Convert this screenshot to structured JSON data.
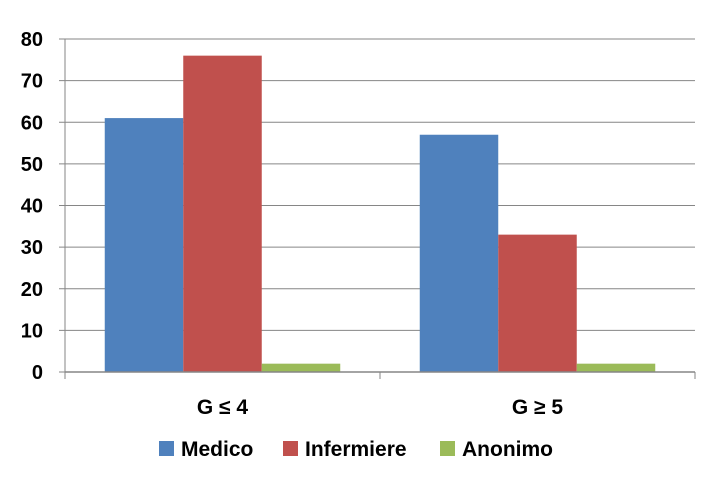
{
  "chart_data": {
    "type": "bar",
    "categories": [
      "G ≤ 4",
      "G ≥ 5"
    ],
    "series": [
      {
        "name": "Medico",
        "values": [
          61,
          57
        ],
        "color": "#4F81BD"
      },
      {
        "name": "Infermiere",
        "values": [
          76,
          33
        ],
        "color": "#C0504D"
      },
      {
        "name": "Anonimo",
        "values": [
          2,
          2
        ],
        "color": "#9BBB59"
      }
    ],
    "ylim": [
      0,
      80
    ],
    "yticks": [
      0,
      10,
      20,
      30,
      40,
      50,
      60,
      70,
      80
    ],
    "grid": true,
    "legend": "bottom",
    "title": "",
    "xlabel": "",
    "ylabel": ""
  }
}
